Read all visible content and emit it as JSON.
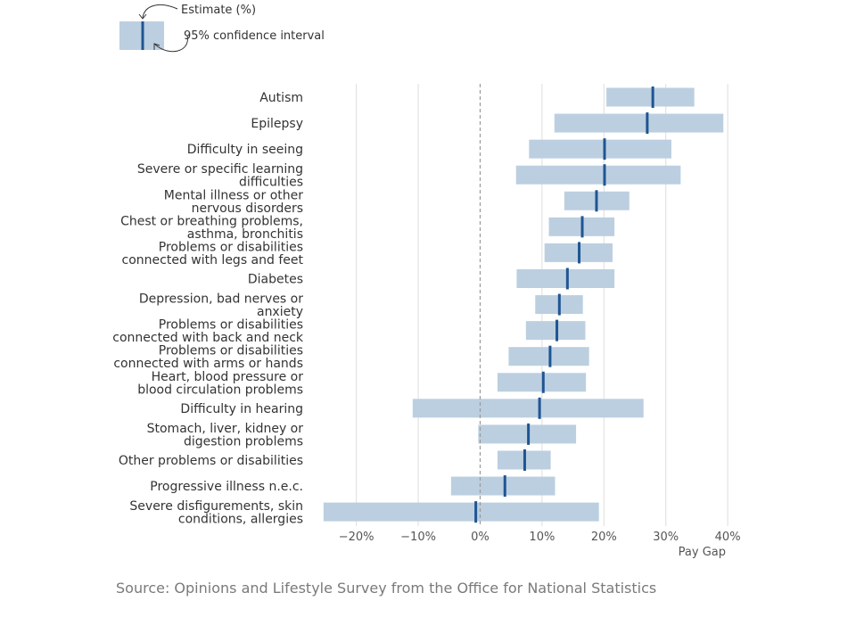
{
  "legend": {
    "estimate_label": "Estimate (%)",
    "ci_label": "95% confidence interval"
  },
  "source": "Source: Opinions and Lifestyle Survey from the Office for National Statistics",
  "colors": {
    "interval": "#bccfe0",
    "estimate": "#1f5592",
    "grid": "#dddddd",
    "zero_line": "#999999",
    "label": "#333333",
    "tick": "#555555"
  },
  "chart_data": {
    "type": "interval",
    "xlabel": "Pay Gap",
    "xlim": [
      -26,
      42
    ],
    "xticks": [
      -20,
      -10,
      0,
      10,
      20,
      30,
      40
    ],
    "xtick_labels": [
      "−20%",
      "−10%",
      "0%",
      "10%",
      "20%",
      "30%",
      "40%"
    ],
    "reference_line": 0,
    "categories": [
      [
        "Autism"
      ],
      [
        "Epilepsy"
      ],
      [
        "Difficulty in seeing"
      ],
      [
        "Severe or specific learning",
        "difficulties"
      ],
      [
        "Mental illness or other",
        "nervous disorders"
      ],
      [
        "Chest or breathing problems,",
        "asthma, bronchitis"
      ],
      [
        "Problems or disabilities",
        "connected with legs and feet"
      ],
      [
        "Diabetes"
      ],
      [
        "Depression, bad nerves or",
        "anxiety"
      ],
      [
        "Problems or disabilities",
        "connected with back and neck"
      ],
      [
        "Problems or disabilities",
        "connected with arms or hands"
      ],
      [
        "Heart, blood pressure or",
        "blood circulation problems"
      ],
      [
        "Difficulty in hearing"
      ],
      [
        "Stomach, liver, kidney or",
        "digestion problems"
      ],
      [
        "Other problems or disabilities"
      ],
      [
        "Progressive illness n.e.c."
      ],
      [
        "Severe disfigurements, skin",
        "conditions, allergies"
      ]
    ],
    "estimate": [
      27.9,
      27.0,
      20.1,
      20.1,
      18.8,
      16.5,
      16.0,
      14.1,
      12.8,
      12.4,
      11.3,
      10.2,
      9.6,
      7.8,
      7.2,
      4.0,
      -0.7
    ],
    "ci_low": [
      20.4,
      12.0,
      7.9,
      5.8,
      13.6,
      11.1,
      10.4,
      5.9,
      8.9,
      7.4,
      4.6,
      2.8,
      -10.9,
      -0.3,
      2.8,
      -4.7,
      -25.3
    ],
    "ci_high": [
      34.6,
      39.3,
      30.9,
      32.4,
      24.1,
      21.7,
      21.4,
      21.7,
      16.6,
      17.0,
      17.6,
      17.1,
      26.4,
      15.5,
      11.4,
      12.1,
      19.2
    ]
  }
}
